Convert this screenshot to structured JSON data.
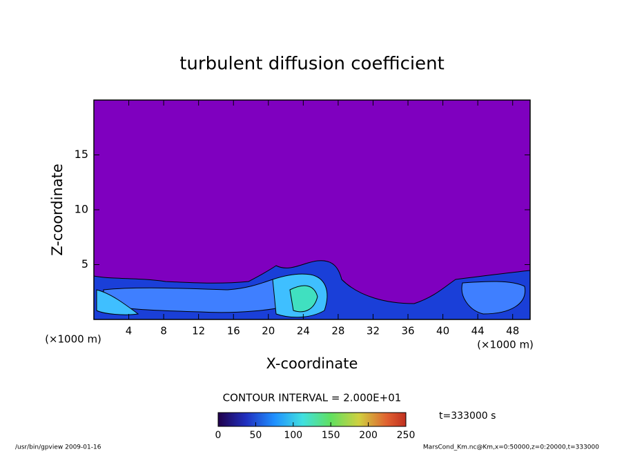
{
  "chart_data": {
    "type": "contour",
    "title": "turbulent diffusion coefficient",
    "xlabel": "X-coordinate",
    "ylabel": "Z-coordinate",
    "xunit": "(×1000 m)",
    "yunit": "(×1000 m)",
    "xlim": [
      0,
      50
    ],
    "xticks": [
      4,
      8,
      12,
      16,
      20,
      24,
      28,
      32,
      36,
      40,
      44,
      48
    ],
    "ylim": [
      0,
      20
    ],
    "yticks": [
      5,
      10,
      15
    ],
    "background_color": "#7f00bf",
    "contour_interval": "CONTOUR INTERVAL = 2.000E+01",
    "time_label": "t=333000 s",
    "colorbar_lim": [
      0,
      250
    ],
    "colorbar_ticks": [
      0,
      50,
      100,
      150,
      200,
      250
    ],
    "footer_left": "/usr/bin/gpview   2009-01-16",
    "footer_right": "MarsCond_Km.nc@Km,x=0:50000,z=0:20000,t=333000"
  }
}
